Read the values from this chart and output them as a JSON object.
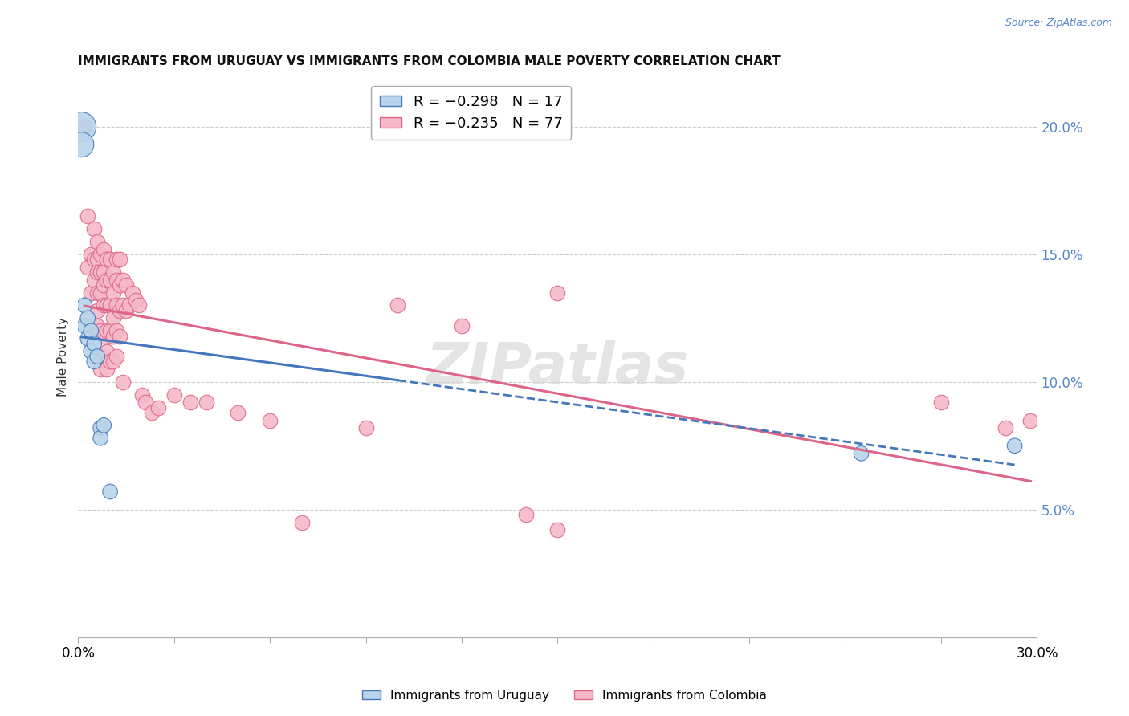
{
  "title": "IMMIGRANTS FROM URUGUAY VS IMMIGRANTS FROM COLOMBIA MALE POVERTY CORRELATION CHART",
  "source": "Source: ZipAtlas.com",
  "ylabel": "Male Poverty",
  "xlim": [
    0.0,
    0.3
  ],
  "ylim": [
    0.0,
    0.22
  ],
  "yticks": [
    0.05,
    0.1,
    0.15,
    0.2
  ],
  "ytick_labels": [
    "5.0%",
    "10.0%",
    "15.0%",
    "20.0%"
  ],
  "xtick_labels_left": "0.0%",
  "xtick_labels_right": "30.0%",
  "color_uruguay": "#b8d4ea",
  "color_colombia": "#f5b8c8",
  "line_color_uruguay": "#4477bb",
  "line_color_colombia": "#dd6688",
  "background_color": "#ffffff",
  "grid_color": "#cccccc",
  "watermark": "ZIPatlas",
  "uruguay_points": [
    [
      0.001,
      0.2
    ],
    [
      0.001,
      0.193
    ],
    [
      0.002,
      0.13
    ],
    [
      0.002,
      0.122
    ],
    [
      0.003,
      0.125
    ],
    [
      0.003,
      0.117
    ],
    [
      0.004,
      0.12
    ],
    [
      0.004,
      0.112
    ],
    [
      0.005,
      0.115
    ],
    [
      0.005,
      0.108
    ],
    [
      0.006,
      0.11
    ],
    [
      0.007,
      0.082
    ],
    [
      0.007,
      0.078
    ],
    [
      0.008,
      0.083
    ],
    [
      0.01,
      0.057
    ],
    [
      0.245,
      0.072
    ],
    [
      0.293,
      0.075
    ]
  ],
  "colombia_points": [
    [
      0.002,
      0.2
    ],
    [
      0.003,
      0.165
    ],
    [
      0.003,
      0.145
    ],
    [
      0.004,
      0.15
    ],
    [
      0.004,
      0.135
    ],
    [
      0.005,
      0.16
    ],
    [
      0.005,
      0.148
    ],
    [
      0.005,
      0.14
    ],
    [
      0.006,
      0.155
    ],
    [
      0.006,
      0.148
    ],
    [
      0.006,
      0.143
    ],
    [
      0.006,
      0.135
    ],
    [
      0.006,
      0.128
    ],
    [
      0.006,
      0.122
    ],
    [
      0.007,
      0.15
    ],
    [
      0.007,
      0.143
    ],
    [
      0.007,
      0.135
    ],
    [
      0.007,
      0.12
    ],
    [
      0.007,
      0.11
    ],
    [
      0.007,
      0.105
    ],
    [
      0.008,
      0.152
    ],
    [
      0.008,
      0.143
    ],
    [
      0.008,
      0.138
    ],
    [
      0.008,
      0.13
    ],
    [
      0.008,
      0.118
    ],
    [
      0.009,
      0.148
    ],
    [
      0.009,
      0.14
    ],
    [
      0.009,
      0.13
    ],
    [
      0.009,
      0.12
    ],
    [
      0.009,
      0.112
    ],
    [
      0.009,
      0.105
    ],
    [
      0.01,
      0.148
    ],
    [
      0.01,
      0.14
    ],
    [
      0.01,
      0.13
    ],
    [
      0.01,
      0.12
    ],
    [
      0.01,
      0.108
    ],
    [
      0.011,
      0.143
    ],
    [
      0.011,
      0.135
    ],
    [
      0.011,
      0.125
    ],
    [
      0.011,
      0.118
    ],
    [
      0.011,
      0.108
    ],
    [
      0.012,
      0.148
    ],
    [
      0.012,
      0.14
    ],
    [
      0.012,
      0.13
    ],
    [
      0.012,
      0.12
    ],
    [
      0.012,
      0.11
    ],
    [
      0.013,
      0.148
    ],
    [
      0.013,
      0.138
    ],
    [
      0.013,
      0.128
    ],
    [
      0.013,
      0.118
    ],
    [
      0.014,
      0.14
    ],
    [
      0.014,
      0.13
    ],
    [
      0.014,
      0.1
    ],
    [
      0.015,
      0.138
    ],
    [
      0.015,
      0.128
    ],
    [
      0.016,
      0.13
    ],
    [
      0.017,
      0.135
    ],
    [
      0.018,
      0.132
    ],
    [
      0.019,
      0.13
    ],
    [
      0.02,
      0.095
    ],
    [
      0.021,
      0.092
    ],
    [
      0.023,
      0.088
    ],
    [
      0.025,
      0.09
    ],
    [
      0.03,
      0.095
    ],
    [
      0.035,
      0.092
    ],
    [
      0.04,
      0.092
    ],
    [
      0.05,
      0.088
    ],
    [
      0.06,
      0.085
    ],
    [
      0.07,
      0.045
    ],
    [
      0.09,
      0.082
    ],
    [
      0.14,
      0.048
    ],
    [
      0.15,
      0.042
    ],
    [
      0.27,
      0.092
    ],
    [
      0.29,
      0.082
    ],
    [
      0.298,
      0.085
    ],
    [
      0.1,
      0.13
    ],
    [
      0.12,
      0.122
    ],
    [
      0.15,
      0.135
    ]
  ]
}
